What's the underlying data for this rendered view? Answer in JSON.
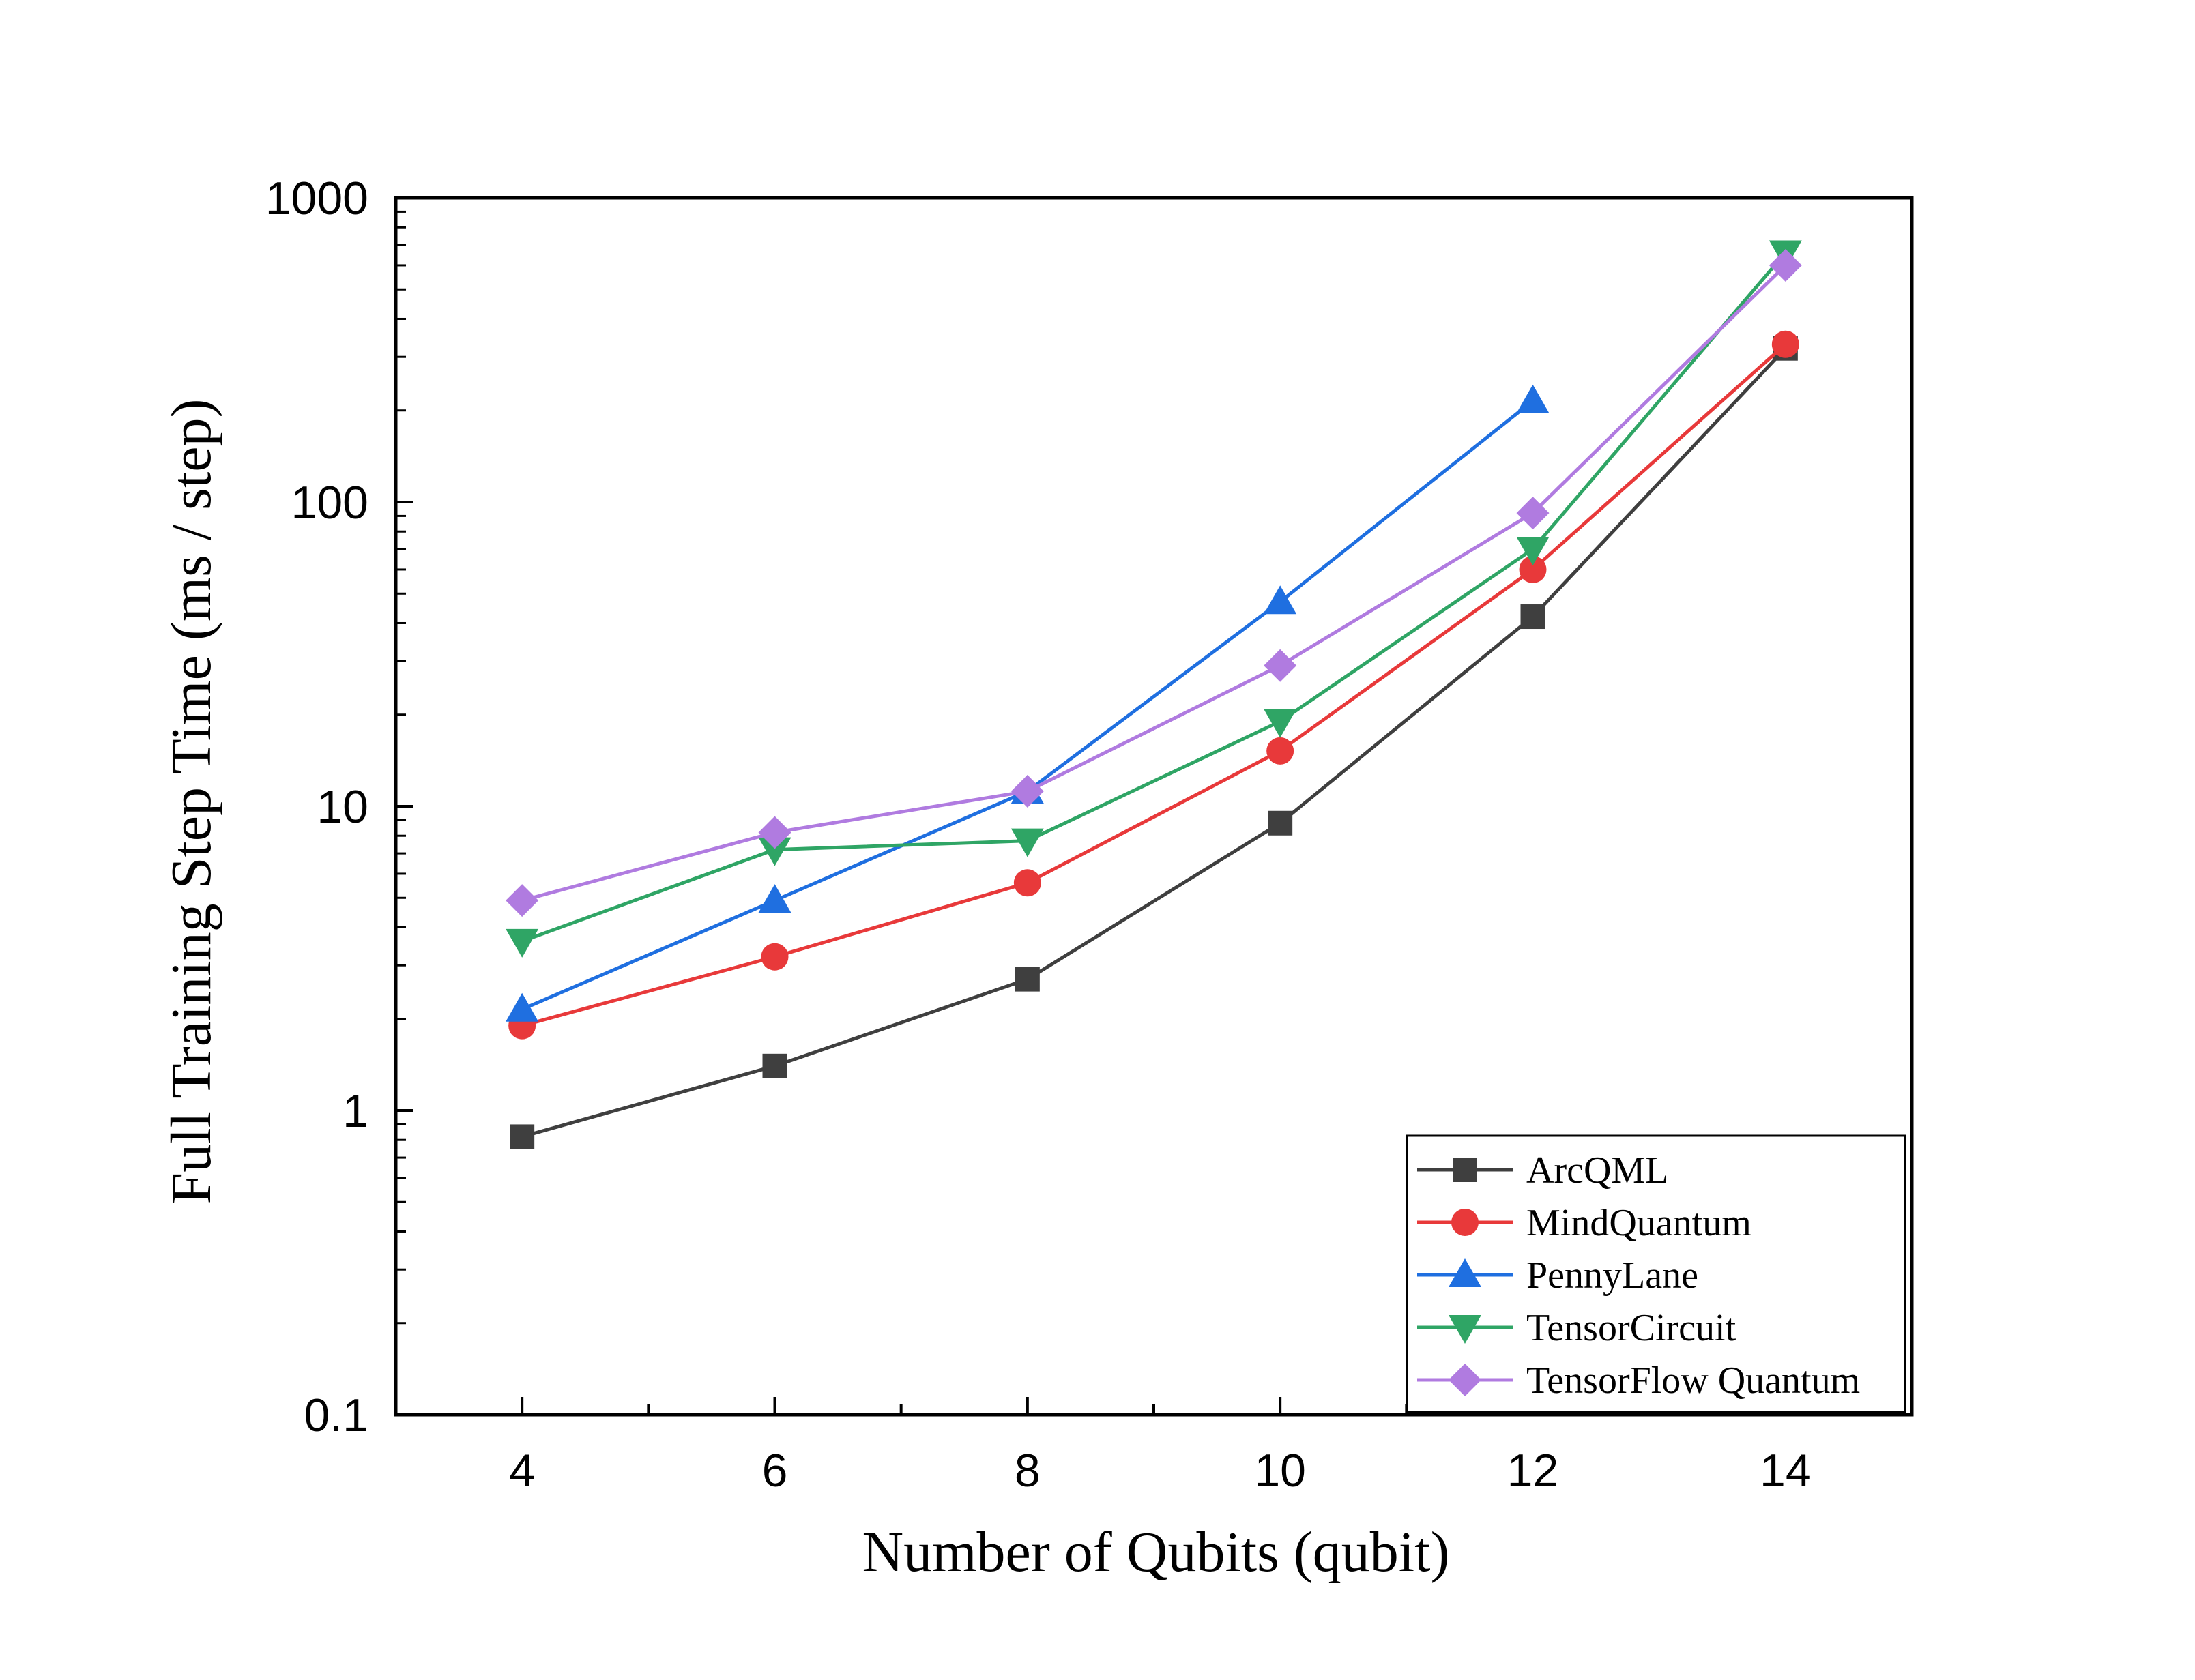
{
  "chart_data": {
    "type": "line",
    "title": "",
    "xlabel": "Number of Qubits (qubit)",
    "ylabel": "Full Training Step Time (ms / step)",
    "x": [
      4,
      6,
      8,
      10,
      12,
      14
    ],
    "xlim": [
      3,
      15
    ],
    "ylim": [
      0.1,
      1000
    ],
    "yscale": "log",
    "xticks": [
      4,
      6,
      8,
      10,
      12,
      14
    ],
    "yticks": [
      0.1,
      1,
      10,
      100,
      1000
    ],
    "ytick_labels": [
      "0.1",
      "1",
      "10",
      "100",
      "1000"
    ],
    "grid": false,
    "legend_position": "bottom-right",
    "series": [
      {
        "name": "ArcQML",
        "color": "#3f3f3f",
        "marker": "square",
        "values": [
          0.82,
          1.4,
          2.7,
          8.8,
          42,
          320
        ]
      },
      {
        "name": "MindQuantum",
        "color": "#e8393a",
        "marker": "circle",
        "values": [
          1.9,
          3.2,
          5.6,
          15.2,
          60,
          330
        ]
      },
      {
        "name": "PennyLane",
        "color": "#1f6fe0",
        "marker": "triangle-up",
        "values": [
          2.15,
          4.9,
          11.2,
          47,
          215,
          null
        ]
      },
      {
        "name": "TensorCircuit",
        "color": "#2fa565",
        "marker": "triangle-down",
        "values": [
          3.6,
          7.2,
          7.7,
          19,
          70,
          660
        ]
      },
      {
        "name": "TensorFlow Quantum",
        "color": "#b07be0",
        "marker": "diamond",
        "values": [
          4.9,
          8.2,
          11.2,
          29,
          92,
          600
        ]
      }
    ]
  }
}
